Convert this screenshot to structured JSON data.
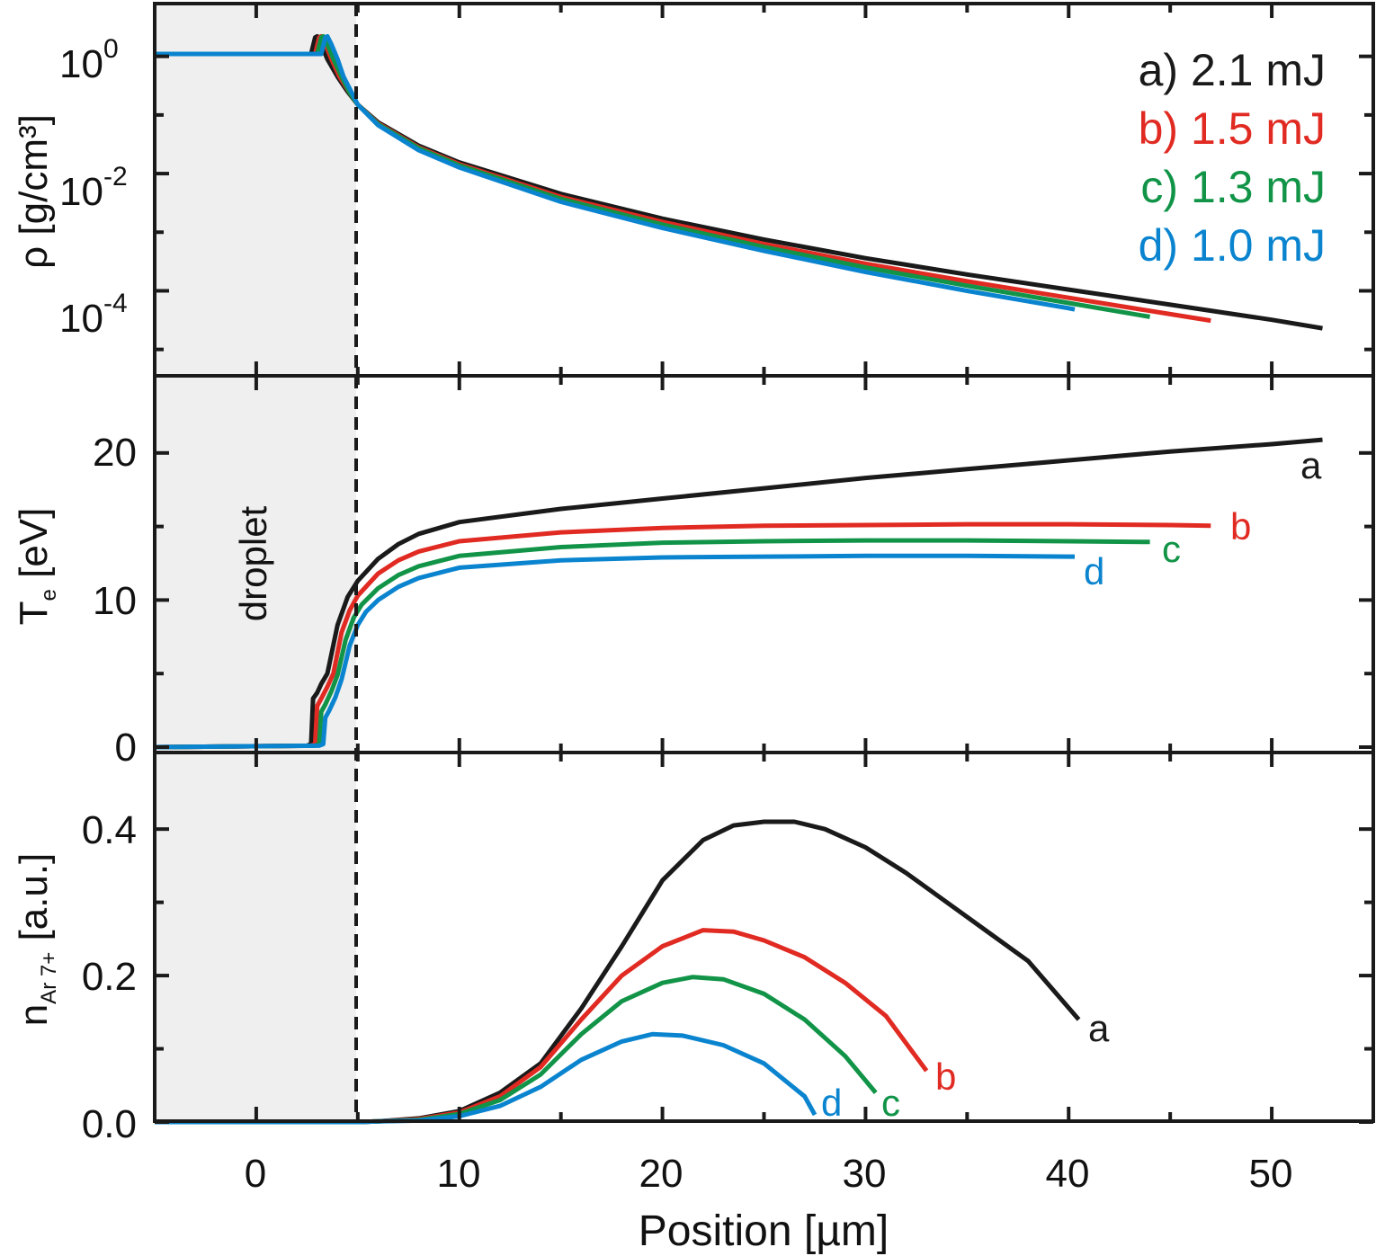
{
  "colors": {
    "a": "#1a1a1a",
    "b": "#e02a22",
    "c": "#119447",
    "d": "#0a84cf",
    "droplet_region": "#efefef",
    "frame": "#1a1a1a"
  },
  "x_axis": {
    "label": "Position [µm]",
    "range": [
      -5,
      55
    ],
    "ticks": [
      0,
      10,
      20,
      30,
      40,
      50
    ],
    "tick_labels": [
      "0",
      "10",
      "20",
      "30",
      "40",
      "50"
    ]
  },
  "droplet": {
    "label": "droplet",
    "region": [
      -5,
      5
    ],
    "boundary_x": 5
  },
  "legend": [
    {
      "key": "a",
      "text": "a) 2.1 mJ"
    },
    {
      "key": "b",
      "text": "b) 1.5 mJ"
    },
    {
      "key": "c",
      "text": "c) 1.3 mJ"
    },
    {
      "key": "d",
      "text": "d) 1.0 mJ"
    }
  ],
  "panels": {
    "density": {
      "ylabel": "ρ [g/cm³]",
      "yscale": "log",
      "ylim_log10": [
        -5.45,
        0.9
      ],
      "tick_labels": [
        {
          "base": "10",
          "exp": "0",
          "value": 1
        },
        {
          "base": "10",
          "exp": "-2",
          "value": 0.01
        },
        {
          "base": "10",
          "exp": "-4",
          "value": 0.0001
        }
      ]
    },
    "temperature": {
      "ylabel_main": "T",
      "ylabel_sub": "e",
      "ylabel_unit": " [eV]",
      "ylim": [
        0,
        25
      ],
      "ticks": [
        0,
        10,
        20
      ],
      "tick_labels": [
        "0",
        "10",
        "20"
      ],
      "curve_labels": [
        "a",
        "b",
        "c",
        "d"
      ]
    },
    "ions": {
      "ylabel_main": "n",
      "ylabel_sub": "Ar 7+",
      "ylabel_unit": " [a.u.]",
      "ylim": [
        0,
        0.48
      ],
      "ticks": [
        0,
        0.2,
        0.4
      ],
      "tick_labels": [
        "0.0",
        "0.2",
        "0.4"
      ],
      "curve_labels": [
        "a",
        "b",
        "c",
        "d"
      ]
    }
  },
  "chart_data": [
    {
      "type": "line",
      "title": "",
      "xlabel": "",
      "ylabel": "ρ [g/cm³]",
      "yscale": "log",
      "series": [
        {
          "name": "a) 2.1 mJ",
          "key": "a",
          "points": [
            [
              -5,
              1.1
            ],
            [
              2.7,
              1.1
            ],
            [
              2.9,
              2.1
            ],
            [
              3.0,
              2.2
            ],
            [
              3.2,
              1.6
            ],
            [
              3.5,
              0.9
            ],
            [
              4.0,
              0.45
            ],
            [
              4.5,
              0.25
            ],
            [
              5.0,
              0.15
            ],
            [
              6,
              0.075
            ],
            [
              8,
              0.03
            ],
            [
              10,
              0.0155
            ],
            [
              15,
              0.0045
            ],
            [
              20,
              0.0017
            ],
            [
              25,
              0.00075
            ],
            [
              30,
              0.00036
            ],
            [
              35,
              0.00019
            ],
            [
              40,
              0.000105
            ],
            [
              45,
              5.8e-05
            ],
            [
              50,
              3.2e-05
            ],
            [
              52.5,
              2.3e-05
            ]
          ]
        },
        {
          "name": "b) 1.5 mJ",
          "key": "b",
          "points": [
            [
              -5,
              1.1
            ],
            [
              2.9,
              1.1
            ],
            [
              3.1,
              2.1
            ],
            [
              3.2,
              2.2
            ],
            [
              3.4,
              1.6
            ],
            [
              3.7,
              0.9
            ],
            [
              4.1,
              0.45
            ],
            [
              4.6,
              0.24
            ],
            [
              5.0,
              0.15
            ],
            [
              6,
              0.072
            ],
            [
              8,
              0.028
            ],
            [
              10,
              0.0145
            ],
            [
              15,
              0.004
            ],
            [
              20,
              0.0015
            ],
            [
              25,
              0.00063
            ],
            [
              30,
              0.00029
            ],
            [
              35,
              0.000145
            ],
            [
              40,
              7.6e-05
            ],
            [
              45,
              4e-05
            ],
            [
              47,
              3.1e-05
            ]
          ]
        },
        {
          "name": "c) 1.3 mJ",
          "key": "c",
          "points": [
            [
              -5,
              1.1
            ],
            [
              3.0,
              1.1
            ],
            [
              3.2,
              2.1
            ],
            [
              3.3,
              2.2
            ],
            [
              3.5,
              1.6
            ],
            [
              3.8,
              0.9
            ],
            [
              4.2,
              0.45
            ],
            [
              4.6,
              0.24
            ],
            [
              5.0,
              0.15
            ],
            [
              6,
              0.07
            ],
            [
              8,
              0.027
            ],
            [
              10,
              0.0138
            ],
            [
              15,
              0.0037
            ],
            [
              20,
              0.00135
            ],
            [
              25,
              0.00056
            ],
            [
              30,
              0.00025
            ],
            [
              35,
              0.000122
            ],
            [
              40,
              6.2e-05
            ],
            [
              44,
              3.6e-05
            ]
          ]
        },
        {
          "name": "d) 1.0 mJ",
          "key": "d",
          "points": [
            [
              -5,
              1.1
            ],
            [
              3.2,
              1.1
            ],
            [
              3.4,
              2.1
            ],
            [
              3.5,
              2.2
            ],
            [
              3.7,
              1.6
            ],
            [
              4.0,
              0.9
            ],
            [
              4.3,
              0.45
            ],
            [
              4.7,
              0.24
            ],
            [
              5.0,
              0.15
            ],
            [
              6,
              0.067
            ],
            [
              8,
              0.025
            ],
            [
              10,
              0.0127
            ],
            [
              15,
              0.0033
            ],
            [
              20,
              0.00118
            ],
            [
              25,
              0.00048
            ],
            [
              30,
              0.00021
            ],
            [
              35,
              0.0001
            ],
            [
              40,
              5.05e-05
            ],
            [
              40.3,
              4.8e-05
            ]
          ]
        }
      ]
    },
    {
      "type": "line",
      "title": "",
      "xlabel": "",
      "ylabel": "Te [eV]",
      "series": [
        {
          "name": "a",
          "key": "a",
          "points": [
            [
              -5,
              0
            ],
            [
              2.5,
              0.1
            ],
            [
              2.7,
              0.2
            ],
            [
              2.8,
              3.3
            ],
            [
              3.0,
              3.7
            ],
            [
              3.2,
              4.3
            ],
            [
              3.5,
              5.0
            ],
            [
              4.0,
              8.3
            ],
            [
              4.5,
              10.2
            ],
            [
              5.0,
              11.3
            ],
            [
              6,
              12.8
            ],
            [
              7,
              13.8
            ],
            [
              8,
              14.5
            ],
            [
              10,
              15.3
            ],
            [
              15,
              16.2
            ],
            [
              20,
              16.9
            ],
            [
              25,
              17.6
            ],
            [
              30,
              18.3
            ],
            [
              35,
              18.9
            ],
            [
              40,
              19.5
            ],
            [
              45,
              20.1
            ],
            [
              50,
              20.6
            ],
            [
              52.5,
              20.9
            ]
          ]
        },
        {
          "name": "b",
          "key": "b",
          "points": [
            [
              -5,
              0
            ],
            [
              2.7,
              0.1
            ],
            [
              2.9,
              0.2
            ],
            [
              3.0,
              2.8
            ],
            [
              3.2,
              3.3
            ],
            [
              3.5,
              4.1
            ],
            [
              3.8,
              5.0
            ],
            [
              4.2,
              7.8
            ],
            [
              4.6,
              9.3
            ],
            [
              5.0,
              10.3
            ],
            [
              6,
              11.8
            ],
            [
              7,
              12.7
            ],
            [
              8,
              13.3
            ],
            [
              10,
              14.0
            ],
            [
              15,
              14.6
            ],
            [
              20,
              14.9
            ],
            [
              25,
              15.05
            ],
            [
              30,
              15.1
            ],
            [
              35,
              15.15
            ],
            [
              40,
              15.15
            ],
            [
              45,
              15.1
            ],
            [
              47,
              15.05
            ]
          ]
        },
        {
          "name": "c",
          "key": "c",
          "points": [
            [
              -5,
              0
            ],
            [
              2.9,
              0.1
            ],
            [
              3.1,
              0.2
            ],
            [
              3.2,
              2.4
            ],
            [
              3.4,
              2.9
            ],
            [
              3.7,
              3.8
            ],
            [
              4.0,
              4.9
            ],
            [
              4.4,
              7.3
            ],
            [
              4.8,
              8.8
            ],
            [
              5.2,
              9.7
            ],
            [
              6,
              10.8
            ],
            [
              7,
              11.7
            ],
            [
              8,
              12.3
            ],
            [
              10,
              13.0
            ],
            [
              15,
              13.6
            ],
            [
              20,
              13.9
            ],
            [
              25,
              14.0
            ],
            [
              30,
              14.05
            ],
            [
              35,
              14.05
            ],
            [
              40,
              14.0
            ],
            [
              44,
              13.95
            ]
          ]
        },
        {
          "name": "d",
          "key": "d",
          "points": [
            [
              -5,
              0
            ],
            [
              3.1,
              0.1
            ],
            [
              3.3,
              0.2
            ],
            [
              3.4,
              2.0
            ],
            [
              3.6,
              2.5
            ],
            [
              3.9,
              3.4
            ],
            [
              4.2,
              4.6
            ],
            [
              4.6,
              6.9
            ],
            [
              5.0,
              8.3
            ],
            [
              5.4,
              9.2
            ],
            [
              6,
              10.0
            ],
            [
              7,
              10.9
            ],
            [
              8,
              11.5
            ],
            [
              10,
              12.2
            ],
            [
              15,
              12.7
            ],
            [
              20,
              12.9
            ],
            [
              25,
              12.95
            ],
            [
              30,
              13.0
            ],
            [
              35,
              13.0
            ],
            [
              40,
              12.95
            ],
            [
              40.3,
              12.95
            ]
          ]
        }
      ]
    },
    {
      "type": "line",
      "title": "",
      "xlabel": "Position [µm]",
      "ylabel": "nAr 7+ [a.u.]",
      "series": [
        {
          "name": "a",
          "key": "a",
          "points": [
            [
              -5,
              0
            ],
            [
              5,
              0
            ],
            [
              6,
              0.001
            ],
            [
              8,
              0.005
            ],
            [
              10,
              0.015
            ],
            [
              12,
              0.04
            ],
            [
              14,
              0.08
            ],
            [
              16,
              0.155
            ],
            [
              18,
              0.24
            ],
            [
              20,
              0.33
            ],
            [
              22,
              0.385
            ],
            [
              23.5,
              0.405
            ],
            [
              25,
              0.41
            ],
            [
              26.5,
              0.41
            ],
            [
              28,
              0.4
            ],
            [
              30,
              0.375
            ],
            [
              32,
              0.34
            ],
            [
              34,
              0.3
            ],
            [
              36,
              0.26
            ],
            [
              38,
              0.22
            ],
            [
              40.5,
              0.14
            ]
          ]
        },
        {
          "name": "b",
          "key": "b",
          "points": [
            [
              -5,
              0
            ],
            [
              5,
              0
            ],
            [
              6,
              0.001
            ],
            [
              8,
              0.004
            ],
            [
              10,
              0.013
            ],
            [
              12,
              0.035
            ],
            [
              14,
              0.075
            ],
            [
              16,
              0.14
            ],
            [
              18,
              0.2
            ],
            [
              20,
              0.24
            ],
            [
              22,
              0.262
            ],
            [
              23.5,
              0.26
            ],
            [
              25,
              0.248
            ],
            [
              27,
              0.225
            ],
            [
              29,
              0.19
            ],
            [
              31,
              0.145
            ],
            [
              33,
              0.07
            ]
          ]
        },
        {
          "name": "c",
          "key": "c",
          "points": [
            [
              -5,
              0
            ],
            [
              5,
              0
            ],
            [
              6,
              0.001
            ],
            [
              8,
              0.003
            ],
            [
              10,
              0.011
            ],
            [
              12,
              0.03
            ],
            [
              14,
              0.065
            ],
            [
              16,
              0.12
            ],
            [
              18,
              0.165
            ],
            [
              20,
              0.19
            ],
            [
              21.5,
              0.198
            ],
            [
              23,
              0.195
            ],
            [
              25,
              0.175
            ],
            [
              27,
              0.14
            ],
            [
              29,
              0.09
            ],
            [
              30.5,
              0.04
            ]
          ]
        },
        {
          "name": "d",
          "key": "d",
          "points": [
            [
              -5,
              0
            ],
            [
              5,
              0
            ],
            [
              6,
              0.001
            ],
            [
              8,
              0.002
            ],
            [
              10,
              0.008
            ],
            [
              12,
              0.022
            ],
            [
              14,
              0.048
            ],
            [
              16,
              0.085
            ],
            [
              18,
              0.11
            ],
            [
              19.5,
              0.12
            ],
            [
              21,
              0.118
            ],
            [
              23,
              0.105
            ],
            [
              25,
              0.08
            ],
            [
              27,
              0.035
            ],
            [
              27.5,
              0.01
            ]
          ]
        }
      ]
    }
  ]
}
